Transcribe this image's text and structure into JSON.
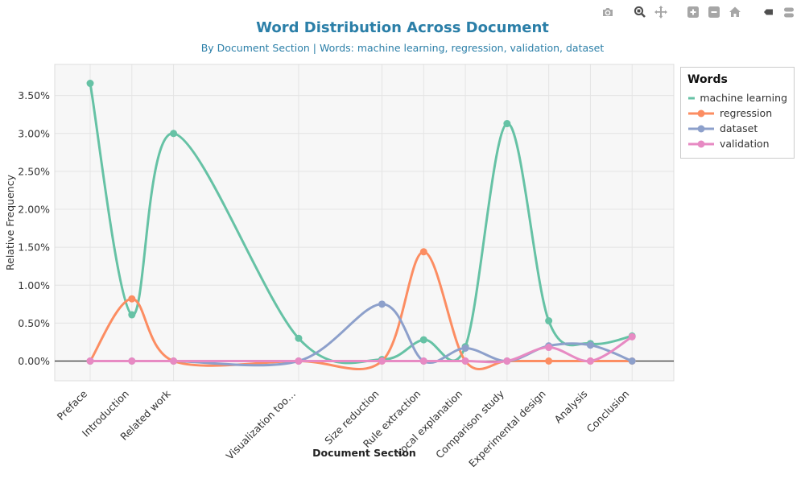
{
  "title": "Word Distribution Across Document",
  "subtitle": "By Document Section | Words: machine learning, regression, validation, dataset",
  "colors": {
    "title_accent": "#2b7fa8",
    "plot_bg": "#f7f7f7",
    "grid": "#e4e4e4",
    "plot_border": "#dcdcdc",
    "zero_line": "#333333",
    "tick_text": "#333333",
    "modebar_gray": "#a6a6a6",
    "modebar_active": "#4f4f4f"
  },
  "toolbar": {
    "groups": [
      {
        "icons": [
          {
            "name": "camera-icon",
            "active": false
          }
        ]
      },
      {
        "icons": [
          {
            "name": "box-zoom-icon",
            "active": true
          },
          {
            "name": "pan-icon",
            "active": false
          }
        ]
      },
      {
        "icons": [
          {
            "name": "zoom-in-icon",
            "active": false
          },
          {
            "name": "zoom-out-icon",
            "active": false
          },
          {
            "name": "home-icon",
            "active": false
          }
        ]
      },
      {
        "icons": [
          {
            "name": "hover-closest-icon",
            "active": true
          },
          {
            "name": "hover-compare-icon",
            "active": false
          }
        ]
      }
    ]
  },
  "legend": {
    "title": "Words"
  },
  "chart_data": {
    "type": "line",
    "line_shape": "spline",
    "title": "Word Distribution Across Document",
    "subtitle": "By Document Section | Words: machine learning, regression, validation, dataset",
    "xlabel": "Document Section",
    "ylabel": "Relative Frequency",
    "categories": [
      "Preface",
      "Introduction",
      "Related work",
      "Visualization too…",
      "Size reduction",
      "Rule extraction",
      "Local explanation",
      "Comparison study",
      "Experimental design",
      "Analysis",
      "Conclusion"
    ],
    "x_positions": [
      0,
      1,
      2,
      5,
      7,
      8,
      9,
      10,
      11,
      12,
      13
    ],
    "series": [
      {
        "name": "machine learning",
        "color": "#66c2a5",
        "values": [
          3.66,
          0.61,
          3.0,
          0.3,
          0.02,
          0.28,
          0.19,
          3.13,
          0.53,
          0.23,
          0.33
        ]
      },
      {
        "name": "regression",
        "color": "#fc8d62",
        "values": [
          0,
          0.82,
          0,
          0,
          0,
          1.44,
          0,
          0,
          0,
          0,
          0
        ]
      },
      {
        "name": "dataset",
        "color": "#8da0cb",
        "values": [
          0,
          0,
          0,
          0,
          0.75,
          0,
          0.17,
          0,
          0.2,
          0.21,
          0
        ]
      },
      {
        "name": "validation",
        "color": "#e78ac3",
        "values": [
          0,
          0,
          0,
          0,
          0,
          0,
          0,
          0,
          0.18,
          0,
          0.32
        ]
      }
    ],
    "yticks": [
      "0.00%",
      "0.50%",
      "1.00%",
      "1.50%",
      "2.00%",
      "2.50%",
      "3.00%",
      "3.50%"
    ],
    "ytick_values": [
      0,
      0.5,
      1.0,
      1.5,
      2.0,
      2.5,
      3.0,
      3.5
    ],
    "x_range": [
      -0.85,
      14.0
    ],
    "y_range": [
      -0.26,
      3.91
    ],
    "grid": true,
    "legend_position": "outside-top-right"
  }
}
